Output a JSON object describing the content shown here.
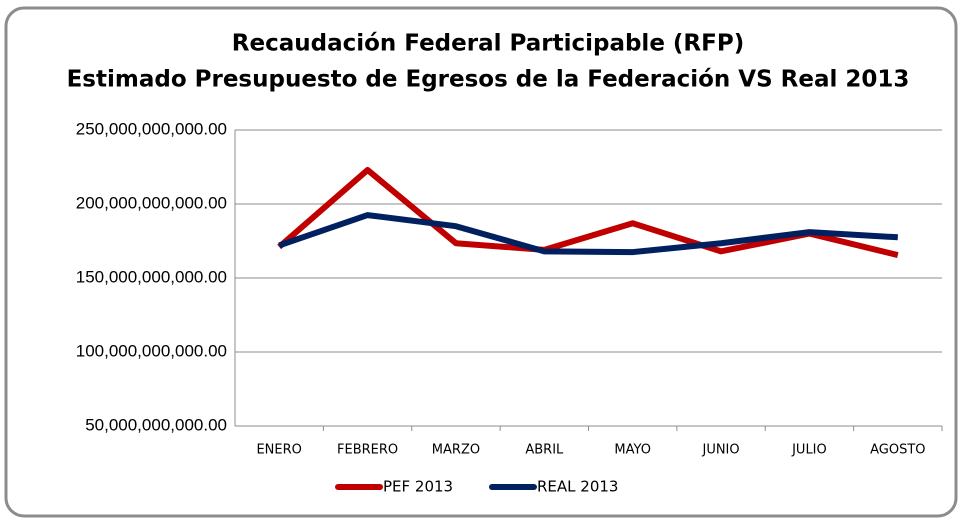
{
  "chart_data": {
    "type": "line",
    "title": "Recaudación Federal Participable (RFP)",
    "subtitle": "Estimado Presupuesto de Egresos de la Federación VS Real 2013",
    "categories": [
      "ENERO",
      "FEBRERO",
      "MARZO",
      "ABRIL",
      "MAYO",
      "JUNIO",
      "JULIO",
      "AGOSTO"
    ],
    "series": [
      {
        "name": "PEF 2013",
        "color": "#c00000",
        "values": [
          171000000000,
          223000000000,
          173500000000,
          169000000000,
          187000000000,
          168000000000,
          180000000000,
          165500000000
        ]
      },
      {
        "name": "REAL 2013",
        "color": "#002060",
        "values": [
          172000000000,
          192500000000,
          185000000000,
          168000000000,
          167500000000,
          173500000000,
          181000000000,
          177500000000
        ]
      }
    ],
    "ylim": [
      50000000000,
      250000000000
    ],
    "yticks": [
      {
        "value": 50000000000,
        "label": "50,000,000,000.00"
      },
      {
        "value": 100000000000,
        "label": "100,000,000,000.00"
      },
      {
        "value": 150000000000,
        "label": "150,000,000,000.00"
      },
      {
        "value": 200000000000,
        "label": "200,000,000,000.00"
      },
      {
        "value": 250000000000,
        "label": "250,000,000,000.00"
      }
    ],
    "grid": true,
    "legend": "bottom"
  }
}
